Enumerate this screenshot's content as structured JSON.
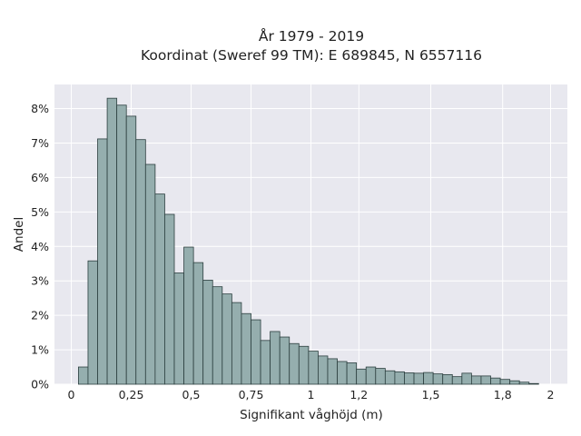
{
  "chart_data": {
    "type": "bar",
    "title_line1": "År 1979 - 2019",
    "title_line2": "Koordinat (Sweref 99 TM): E 689845, N 6557116",
    "xlabel": "Signifikant våghöjd (m)",
    "ylabel": "Andel",
    "xlim": [
      -0.07,
      2.07
    ],
    "ylim": [
      0,
      8.7
    ],
    "x_ticks": [
      0,
      0.25,
      0.5,
      0.75,
      1,
      1.2,
      1.5,
      1.8,
      2
    ],
    "x_tick_labels": [
      "0",
      "0,25",
      "0,5",
      "0,75",
      "1",
      "1,2",
      "1,5",
      "1,8",
      "2"
    ],
    "y_ticks": [
      0,
      1,
      2,
      3,
      4,
      5,
      6,
      7,
      8
    ],
    "y_tick_labels": [
      "0%",
      "1%",
      "2%",
      "3%",
      "4%",
      "5%",
      "6%",
      "7%",
      "8%"
    ],
    "bin_width": 0.04,
    "bin_starts": [
      0.03,
      0.07,
      0.11,
      0.15,
      0.19,
      0.23,
      0.27,
      0.31,
      0.35,
      0.39,
      0.43,
      0.47,
      0.51,
      0.55,
      0.59,
      0.63,
      0.67,
      0.71,
      0.75,
      0.79,
      0.83,
      0.87,
      0.91,
      0.95,
      0.99,
      1.03,
      1.07,
      1.11,
      1.15,
      1.19,
      1.23,
      1.27,
      1.31,
      1.35,
      1.39,
      1.43,
      1.47,
      1.51,
      1.55,
      1.59,
      1.63,
      1.67,
      1.71,
      1.75,
      1.79,
      1.83,
      1.87,
      1.91
    ],
    "values": [
      0.5,
      3.58,
      7.12,
      8.3,
      8.1,
      7.78,
      7.1,
      6.38,
      5.52,
      4.93,
      3.23,
      3.98,
      3.53,
      3.02,
      2.83,
      2.62,
      2.37,
      2.05,
      1.87,
      1.27,
      1.53,
      1.37,
      1.18,
      1.1,
      0.96,
      0.82,
      0.74,
      0.66,
      0.62,
      0.44,
      0.5,
      0.46,
      0.39,
      0.36,
      0.33,
      0.32,
      0.34,
      0.3,
      0.28,
      0.22,
      0.32,
      0.24,
      0.24,
      0.18,
      0.14,
      0.1,
      0.06,
      0.02
    ],
    "colors": {
      "bar_fill": "#95aeae",
      "bar_stroke": "#2c3f3f",
      "plot_background": "#e8e8ef",
      "grid": "#ffffff"
    },
    "grid": true,
    "legend": null
  }
}
